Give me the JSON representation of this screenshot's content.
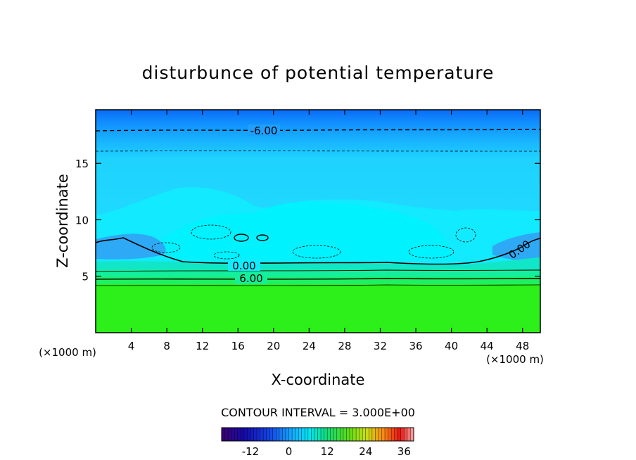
{
  "chart_data": {
    "type": "heatmap",
    "title": "disturbunce of potential temperature",
    "xlabel": "X-coordinate",
    "ylabel": "Z-coordinate",
    "x_unit": "(×1000 m)",
    "y_unit": "(×1000 m)",
    "x_ticks": [
      4,
      8,
      12,
      16,
      20,
      24,
      28,
      32,
      36,
      40,
      44,
      48
    ],
    "y_ticks": [
      5,
      10,
      15
    ],
    "xlim": [
      0,
      50
    ],
    "ylim": [
      0,
      19.75
    ],
    "contour_interval_label": "CONTOUR INTERVAL = 3.000E+00",
    "contour_labels": [
      "-6.00",
      "0.00",
      "6.00",
      "0.00"
    ],
    "colorbar": {
      "range": [
        -21,
        39
      ],
      "ticks": [
        "-12",
        "0",
        "12",
        "24",
        "36"
      ],
      "tick_values": [
        -12,
        0,
        12,
        24,
        36
      ]
    },
    "colors": {
      "upper_blue": "#0a82ff",
      "mid_cyan": "#19e1ff",
      "light_cyan": "#00f0ff",
      "lower_blue": "#4ab4f0",
      "transition_green": "#10f0a0",
      "bottom_green": "#2cef18"
    }
  }
}
